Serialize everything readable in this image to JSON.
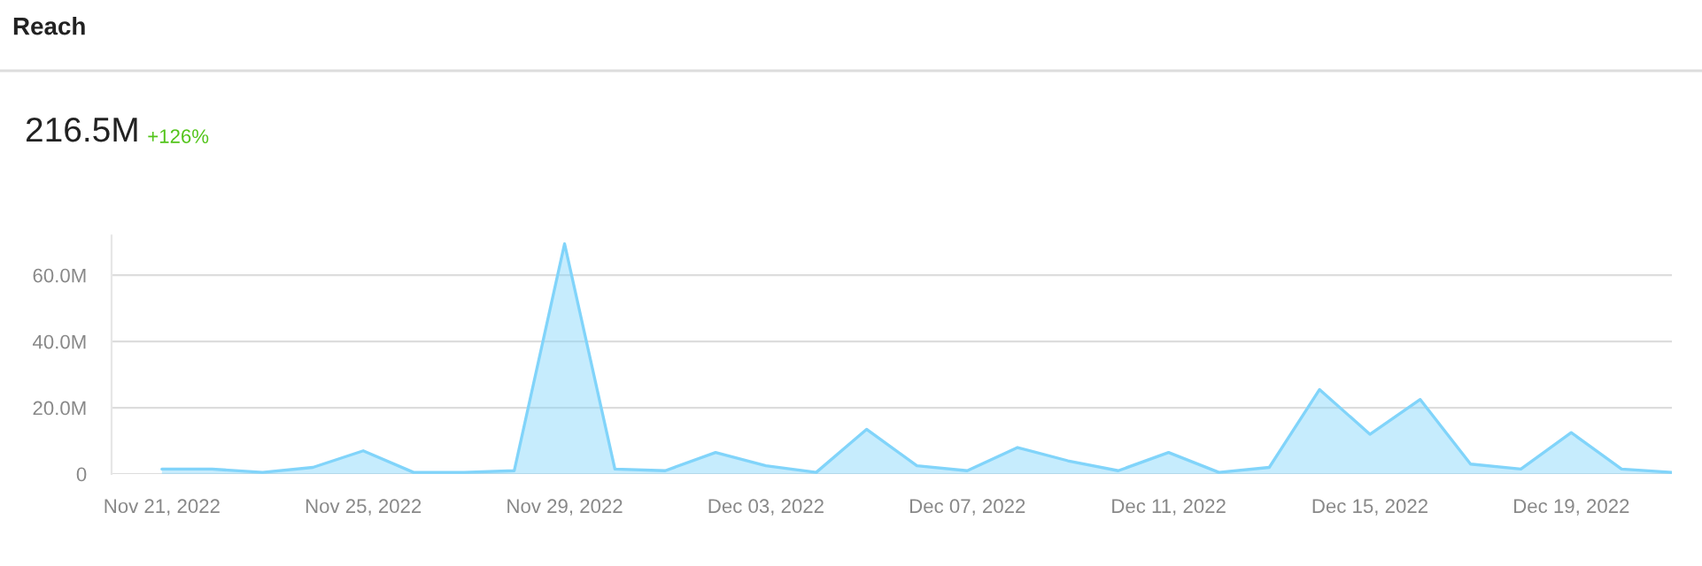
{
  "chart_data": {
    "type": "area",
    "title": "Reach",
    "annotations": [
      "216.5M",
      "+126%"
    ],
    "x": [
      "2022-11-21",
      "2022-11-22",
      "2022-11-23",
      "2022-11-24",
      "2022-11-25",
      "2022-11-26",
      "2022-11-27",
      "2022-11-28",
      "2022-11-29",
      "2022-11-30",
      "2022-12-01",
      "2022-12-02",
      "2022-12-03",
      "2022-12-04",
      "2022-12-05",
      "2022-12-06",
      "2022-12-07",
      "2022-12-08",
      "2022-12-09",
      "2022-12-10",
      "2022-12-11",
      "2022-12-12",
      "2022-12-13",
      "2022-12-14",
      "2022-12-15",
      "2022-12-16",
      "2022-12-17",
      "2022-12-18",
      "2022-12-19",
      "2022-12-20",
      "2022-12-21"
    ],
    "series": [
      {
        "color": "#81d4fa",
        "values": [
          1.5,
          1.5,
          0.5,
          2,
          7,
          0.5,
          0.5,
          1,
          69.5,
          1.5,
          1,
          6.5,
          2.5,
          0.5,
          13.5,
          2.5,
          1,
          8,
          4,
          1,
          6.5,
          0.5,
          2,
          25.5,
          12,
          22.5,
          3,
          1.5,
          12.5,
          1.5,
          0.5
        ]
      }
    ],
    "xlim": [
      "2022-11-20",
      "2022-12-21"
    ],
    "xticks": [
      {
        "value": "2022-11-21",
        "label": "Nov 21, 2022"
      },
      {
        "value": "2022-11-25",
        "label": "Nov 25, 2022"
      },
      {
        "value": "2022-11-29",
        "label": "Nov 29, 2022"
      },
      {
        "value": "2022-12-03",
        "label": "Dec 03, 2022"
      },
      {
        "value": "2022-12-07",
        "label": "Dec 07, 2022"
      },
      {
        "value": "2022-12-11",
        "label": "Dec 11, 2022"
      },
      {
        "value": "2022-12-15",
        "label": "Dec 15, 2022"
      },
      {
        "value": "2022-12-19",
        "label": "Dec 19, 2022"
      }
    ],
    "yticks": [
      0,
      {
        "value": 20,
        "label": "20.0M"
      },
      {
        "value": 40,
        "label": "40.0M"
      },
      {
        "value": 60,
        "label": "60.0M"
      }
    ],
    "ylim": [
      0,
      72
    ],
    "grid": "y",
    "legend": false
  }
}
